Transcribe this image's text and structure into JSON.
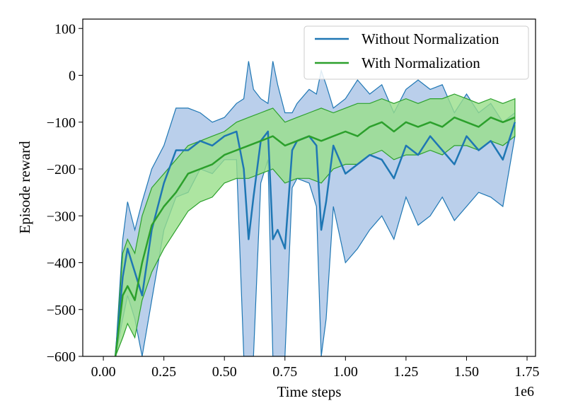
{
  "chart_data": {
    "type": "line",
    "title": "",
    "xlabel": "Time steps",
    "ylabel": "Episode reward",
    "x_scale_label": "1e6",
    "xlim": [
      -0.085,
      1.785
    ],
    "ylim": [
      -600,
      120
    ],
    "xticks": [
      0.0,
      0.25,
      0.5,
      0.75,
      1.0,
      1.25,
      1.5,
      1.75
    ],
    "xtick_labels": [
      "0.00",
      "0.25",
      "0.50",
      "0.75",
      "1.00",
      "1.25",
      "1.50",
      "1.75"
    ],
    "yticks": [
      -600,
      -500,
      -400,
      -300,
      -200,
      -100,
      0,
      100
    ],
    "ytick_labels": [
      "−600",
      "−500",
      "−400",
      "−300",
      "−200",
      "−100",
      "0",
      "100"
    ],
    "legend_position": "top-right",
    "series": [
      {
        "name": "Without Normalization",
        "color": "#1f77b4",
        "fill_color": "#aec7e8",
        "x": [
          0.05,
          0.08,
          0.1,
          0.13,
          0.16,
          0.2,
          0.25,
          0.3,
          0.35,
          0.4,
          0.45,
          0.5,
          0.55,
          0.58,
          0.6,
          0.62,
          0.65,
          0.68,
          0.7,
          0.72,
          0.75,
          0.78,
          0.8,
          0.85,
          0.88,
          0.9,
          0.92,
          0.95,
          1.0,
          1.05,
          1.1,
          1.15,
          1.2,
          1.25,
          1.3,
          1.35,
          1.4,
          1.45,
          1.5,
          1.55,
          1.6,
          1.65,
          1.7
        ],
        "mean": [
          -600,
          -430,
          -370,
          -420,
          -470,
          -330,
          -230,
          -160,
          -160,
          -140,
          -150,
          -130,
          -120,
          -200,
          -350,
          -260,
          -140,
          -120,
          -350,
          -330,
          -370,
          -160,
          -140,
          -130,
          -150,
          -330,
          -270,
          -150,
          -210,
          -190,
          -170,
          -180,
          -220,
          -150,
          -170,
          -130,
          -160,
          -190,
          -130,
          -160,
          -140,
          -180,
          -100
        ],
        "upper": [
          -600,
          -350,
          -270,
          -330,
          -270,
          -200,
          -150,
          -70,
          -70,
          -80,
          -100,
          -90,
          -60,
          -50,
          30,
          -30,
          -50,
          -60,
          30,
          -20,
          -80,
          -80,
          -60,
          -30,
          -40,
          10,
          -20,
          -70,
          -50,
          -10,
          -40,
          -20,
          -80,
          -30,
          -10,
          -30,
          -20,
          -80,
          -40,
          -80,
          -60,
          -100,
          -80
        ],
        "lower": [
          -600,
          -520,
          -470,
          -520,
          -600,
          -480,
          -330,
          -260,
          -250,
          -200,
          -210,
          -180,
          -180,
          -600,
          -600,
          -600,
          -230,
          -180,
          -600,
          -600,
          -600,
          -240,
          -220,
          -230,
          -280,
          -600,
          -520,
          -280,
          -400,
          -370,
          -330,
          -300,
          -350,
          -260,
          -320,
          -300,
          -260,
          -310,
          -280,
          -250,
          -260,
          -280,
          -130
        ]
      },
      {
        "name": "With Normalization",
        "color": "#2ca02c",
        "fill_color": "#98df8a",
        "x": [
          0.05,
          0.08,
          0.1,
          0.13,
          0.16,
          0.2,
          0.25,
          0.3,
          0.35,
          0.4,
          0.45,
          0.5,
          0.55,
          0.6,
          0.65,
          0.7,
          0.75,
          0.8,
          0.85,
          0.9,
          0.95,
          1.0,
          1.05,
          1.1,
          1.15,
          1.2,
          1.25,
          1.3,
          1.35,
          1.4,
          1.45,
          1.5,
          1.55,
          1.6,
          1.65,
          1.7
        ],
        "mean": [
          -600,
          -470,
          -450,
          -480,
          -400,
          -320,
          -280,
          -250,
          -210,
          -200,
          -190,
          -170,
          -160,
          -150,
          -140,
          -130,
          -150,
          -140,
          -130,
          -140,
          -130,
          -120,
          -130,
          -110,
          -100,
          -120,
          -100,
          -110,
          -100,
          -110,
          -90,
          -100,
          -110,
          -90,
          -100,
          -90
        ],
        "upper": [
          -600,
          -380,
          -350,
          -380,
          -300,
          -240,
          -210,
          -180,
          -150,
          -140,
          -130,
          -120,
          -100,
          -90,
          -80,
          -70,
          -100,
          -90,
          -80,
          -70,
          -80,
          -70,
          -60,
          -60,
          -50,
          -60,
          -50,
          -60,
          -50,
          -50,
          -40,
          -50,
          -60,
          -50,
          -60,
          -50
        ],
        "lower": [
          -600,
          -560,
          -530,
          -560,
          -480,
          -420,
          -370,
          -330,
          -290,
          -270,
          -260,
          -230,
          -220,
          -220,
          -210,
          -200,
          -230,
          -220,
          -220,
          -230,
          -200,
          -190,
          -190,
          -170,
          -160,
          -180,
          -170,
          -170,
          -160,
          -170,
          -150,
          -150,
          -160,
          -140,
          -150,
          -130
        ]
      }
    ]
  }
}
